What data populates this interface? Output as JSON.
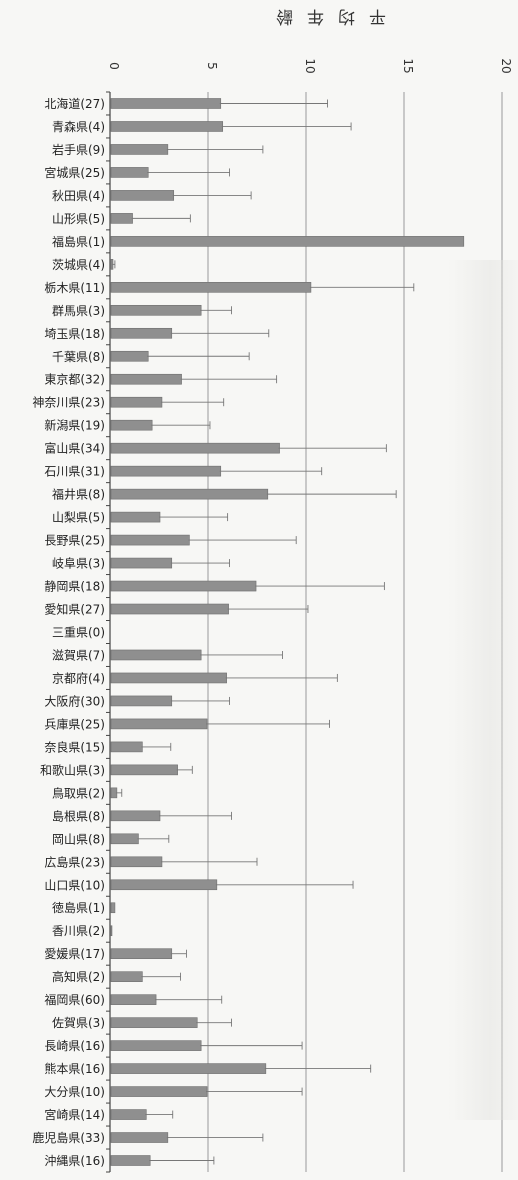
{
  "chart_data": {
    "type": "bar",
    "orientation": "horizontal",
    "title": "",
    "xlabel": "平均年齢",
    "ylabel": "",
    "xlim": [
      0,
      20
    ],
    "x_ticks": [
      "0",
      "5",
      "10",
      "15",
      "20"
    ],
    "tick_labels_rotated_180": true,
    "grid": true,
    "error_bars": true,
    "colors": {
      "bar": "#8f8f8f",
      "bar_edge": "#6f6f6f",
      "grid": "#9a9a9a",
      "axis": "#444444",
      "error": "#777777"
    },
    "categories": [
      "北海道(27)",
      "青森県(4)",
      "岩手県(9)",
      "宮城県(25)",
      "秋田県(4)",
      "山形県(5)",
      "福島県(1)",
      "茨城県(4)",
      "栃木県(11)",
      "群馬県(3)",
      "埼玉県(18)",
      "千葉県(8)",
      "東京都(32)",
      "神奈川県(23)",
      "新潟県(19)",
      "富山県(34)",
      "石川県(31)",
      "福井県(8)",
      "山梨県(5)",
      "長野県(25)",
      "岐阜県(3)",
      "静岡県(18)",
      "愛知県(27)",
      "三重県(0)",
      "滋賀県(7)",
      "京都府(4)",
      "大阪府(30)",
      "兵庫県(25)",
      "奈良県(15)",
      "和歌山県(3)",
      "鳥取県(2)",
      "島根県(8)",
      "岡山県(8)",
      "広島県(23)",
      "山口県(10)",
      "徳島県(1)",
      "香川県(2)",
      "愛媛県(17)",
      "高知県(2)",
      "福岡県(60)",
      "佐賀県(3)",
      "長崎県(16)",
      "熊本県(16)",
      "大分県(10)",
      "宮崎県(14)",
      "鹿児島県(33)",
      "沖縄県(16)"
    ],
    "values": [
      5.6,
      5.7,
      2.9,
      1.9,
      3.2,
      1.1,
      18.0,
      0.1,
      10.2,
      4.6,
      3.1,
      1.9,
      3.6,
      2.6,
      2.1,
      8.6,
      5.6,
      8.0,
      2.5,
      4.0,
      3.1,
      7.4,
      6.0,
      0,
      4.6,
      5.9,
      3.1,
      4.9,
      1.6,
      3.4,
      0.3,
      2.5,
      1.4,
      2.6,
      5.4,
      0.2,
      0.05,
      3.1,
      1.6,
      2.3,
      4.4,
      4.6,
      7.9,
      4.9,
      1.8,
      2.9,
      2.0
    ],
    "errors": [
      5.5,
      6.6,
      4.9,
      4.2,
      4.0,
      3.0,
      0,
      0.15,
      5.3,
      1.6,
      5.0,
      5.2,
      4.9,
      3.2,
      3.0,
      5.5,
      5.2,
      6.6,
      3.5,
      5.5,
      3.0,
      6.6,
      4.1,
      0,
      4.2,
      5.7,
      3.0,
      6.3,
      1.5,
      0.8,
      0.3,
      3.7,
      1.6,
      4.9,
      7.0,
      0,
      0,
      0.8,
      2.0,
      3.4,
      1.8,
      5.2,
      5.4,
      4.9,
      1.4,
      4.9,
      3.3
    ]
  }
}
